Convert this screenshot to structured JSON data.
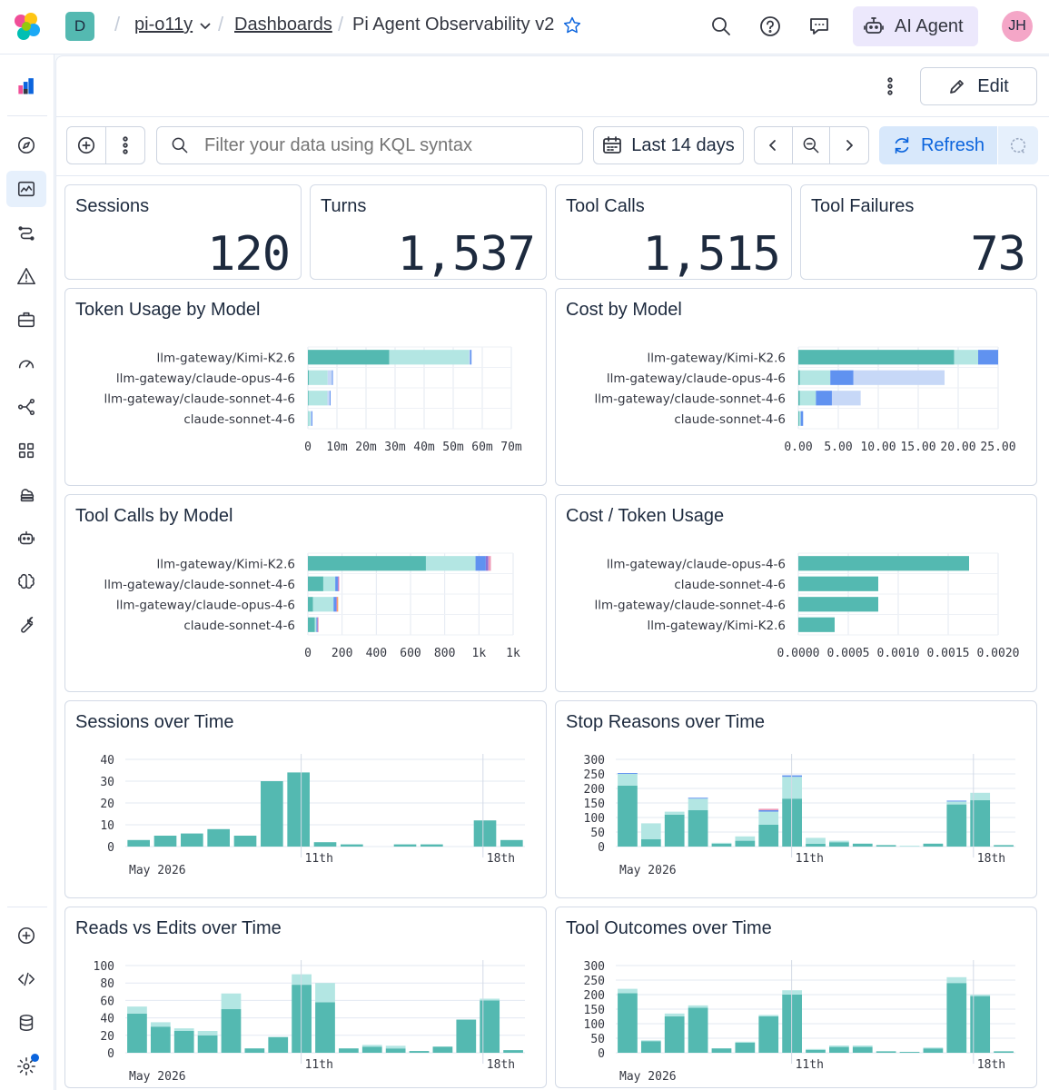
{
  "header": {
    "space_badge": "D",
    "workspace": "pi-o11y",
    "breadcrumb_dashboards": "Dashboards",
    "dashboard_title": "Pi Agent Observability v2",
    "ai_agent_label": "AI Agent",
    "user_initials": "JH"
  },
  "toolbar": {
    "edit_label": "Edit",
    "filter_placeholder": "Filter your data using KQL syntax",
    "time_range": "Last 14 days",
    "refresh_label": "Refresh"
  },
  "metrics": [
    {
      "title": "Sessions",
      "value": "120"
    },
    {
      "title": "Turns",
      "value": "1,537"
    },
    {
      "title": "Tool Calls",
      "value": "1,515"
    },
    {
      "title": "Tool Failures",
      "value": "73"
    }
  ],
  "colors": {
    "primary": "#54b9b1",
    "light": "#b3e6e3",
    "blue": "#6092f0",
    "paleblue": "#c7d8f7",
    "pink": "#ee9bb8",
    "orange": "#f5a35c",
    "purple": "#8a72d6",
    "accent": "#0b64dd"
  },
  "chart_data": [
    {
      "id": "token_usage",
      "title": "Token Usage by Model",
      "type": "bar",
      "orientation": "horizontal",
      "stacked": true,
      "categories": [
        "llm-gateway/Kimi-K2.6",
        "llm-gateway/claude-opus-4-6",
        "llm-gateway/claude-sonnet-4-6",
        "claude-sonnet-4-6"
      ],
      "series": [
        {
          "color": "primary",
          "values": [
            28000000,
            300000,
            200000,
            50000
          ]
        },
        {
          "color": "light",
          "values": [
            27500000,
            6500000,
            6500000,
            900000
          ]
        },
        {
          "color": "paleblue",
          "values": [
            300000,
            1500000,
            800000,
            300000
          ]
        },
        {
          "color": "blue",
          "values": [
            500000,
            200000,
            200000,
            100000
          ]
        }
      ],
      "xticks": [
        "0",
        "10m",
        "20m",
        "30m",
        "40m",
        "50m",
        "60m",
        "70m"
      ],
      "xmax": 70000000
    },
    {
      "id": "cost_by_model",
      "title": "Cost by Model",
      "type": "bar",
      "orientation": "horizontal",
      "stacked": true,
      "categories": [
        "llm-gateway/Kimi-K2.6",
        "llm-gateway/claude-opus-4-6",
        "llm-gateway/claude-sonnet-4-6",
        "claude-sonnet-4-6"
      ],
      "series": [
        {
          "color": "primary",
          "values": [
            19.5,
            0.2,
            0.2,
            0.1
          ]
        },
        {
          "color": "light",
          "values": [
            3.0,
            3.8,
            2.0,
            0.2
          ]
        },
        {
          "color": "blue",
          "values": [
            2.5,
            2.9,
            2.0,
            0.3
          ]
        },
        {
          "color": "paleblue",
          "values": [
            0,
            11.4,
            3.6,
            0
          ]
        }
      ],
      "xticks": [
        "0.00",
        "5.00",
        "10.00",
        "15.00",
        "20.00",
        "25.00"
      ],
      "xmax": 25
    },
    {
      "id": "tool_calls_by_model",
      "title": "Tool Calls by Model",
      "type": "bar",
      "orientation": "horizontal",
      "stacked": true,
      "categories": [
        "llm-gateway/Kimi-K2.6",
        "llm-gateway/claude-sonnet-4-6",
        "llm-gateway/claude-opus-4-6",
        "claude-sonnet-4-6"
      ],
      "series": [
        {
          "color": "primary",
          "values": [
            690,
            90,
            30,
            40
          ]
        },
        {
          "color": "light",
          "values": [
            290,
            70,
            120,
            10
          ]
        },
        {
          "color": "blue",
          "values": [
            60,
            15,
            15,
            5
          ]
        },
        {
          "color": "purple",
          "values": [
            15,
            3,
            3,
            2
          ]
        },
        {
          "color": "pink",
          "values": [
            15,
            3,
            3,
            2
          ]
        },
        {
          "color": "orange",
          "values": [
            0,
            0,
            6,
            0
          ]
        }
      ],
      "xticks": [
        "0",
        "200",
        "400",
        "600",
        "800",
        "1k",
        "1k"
      ],
      "xmax": 1200
    },
    {
      "id": "cost_per_token",
      "title": "Cost / Token Usage",
      "type": "bar",
      "orientation": "horizontal",
      "categories": [
        "llm-gateway/claude-opus-4-6",
        "claude-sonnet-4-6",
        "llm-gateway/claude-sonnet-4-6",
        "llm-gateway/Kimi-K2.6"
      ],
      "values": [
        0.00188,
        0.00088,
        0.00088,
        0.0004
      ],
      "xticks": [
        "0.0000",
        "0.0005",
        "0.0010",
        "0.0015",
        "0.0020"
      ],
      "xmax": 0.0022
    },
    {
      "id": "sessions_over_time",
      "title": "Sessions over Time",
      "type": "bar",
      "x": [
        "2026-05-05",
        "2026-05-06",
        "2026-05-07",
        "2026-05-08",
        "2026-05-09",
        "2026-05-10",
        "2026-05-11",
        "2026-05-12",
        "2026-05-13",
        "2026-05-14",
        "2026-05-15",
        "2026-05-16",
        "2026-05-17",
        "2026-05-18",
        "2026-05-19"
      ],
      "yticks": [
        "0",
        "10",
        "20",
        "30",
        "40"
      ],
      "ymax": 45,
      "series": [
        {
          "color": "primary",
          "values": [
            3,
            5,
            6,
            8,
            5,
            30,
            34,
            2,
            1,
            0,
            1,
            1,
            0,
            12,
            3
          ]
        }
      ],
      "xlabel_month": "May 2026",
      "xtick_labels": [
        "11th",
        "18th"
      ]
    },
    {
      "id": "stop_reasons_over_time",
      "title": "Stop Reasons over Time",
      "type": "bar",
      "stacked": true,
      "yticks": [
        "0",
        "50",
        "100",
        "150",
        "200",
        "250",
        "300"
      ],
      "ymax": 320,
      "series": [
        {
          "color": "primary",
          "values": [
            210,
            25,
            110,
            125,
            10,
            20,
            75,
            165,
            10,
            15,
            10,
            5,
            0,
            10,
            145,
            160,
            5
          ]
        },
        {
          "color": "light",
          "values": [
            40,
            55,
            10,
            40,
            3,
            15,
            45,
            75,
            20,
            5,
            0,
            0,
            3,
            0,
            10,
            25,
            0
          ]
        },
        {
          "color": "blue",
          "values": [
            3,
            0,
            0,
            3,
            0,
            0,
            5,
            5,
            0,
            0,
            0,
            0,
            0,
            0,
            3,
            0,
            0
          ]
        },
        {
          "color": "pink",
          "values": [
            0,
            0,
            0,
            0,
            0,
            0,
            5,
            0,
            0,
            0,
            0,
            0,
            0,
            0,
            0,
            0,
            0
          ]
        }
      ],
      "xlabel_month": "May 2026",
      "xtick_labels": [
        "11th",
        "18th"
      ]
    },
    {
      "id": "reads_vs_edits",
      "title": "Reads vs Edits over Time",
      "type": "bar",
      "stacked": true,
      "yticks": [
        "0",
        "20",
        "40",
        "60",
        "80",
        "100"
      ],
      "ymax": 105,
      "series": [
        {
          "color": "primary",
          "values": [
            45,
            30,
            25,
            20,
            50,
            5,
            18,
            78,
            58,
            5,
            7,
            5,
            2,
            7,
            38,
            60,
            3
          ]
        },
        {
          "color": "light",
          "values": [
            8,
            5,
            3,
            5,
            18,
            0,
            0,
            12,
            22,
            0,
            2,
            3,
            0,
            0,
            0,
            2,
            0
          ]
        }
      ],
      "xlabel_month": "May 2026",
      "xtick_labels": [
        "11th",
        "18th"
      ]
    },
    {
      "id": "tool_outcomes",
      "title": "Tool Outcomes over Time",
      "type": "bar",
      "stacked": true,
      "yticks": [
        "0",
        "50",
        "100",
        "150",
        "200",
        "250",
        "300"
      ],
      "ymax": 320,
      "series": [
        {
          "color": "primary",
          "values": [
            205,
            40,
            125,
            155,
            15,
            35,
            125,
            200,
            10,
            20,
            20,
            5,
            3,
            15,
            240,
            195,
            5
          ]
        },
        {
          "color": "light",
          "values": [
            15,
            3,
            10,
            8,
            0,
            3,
            5,
            15,
            3,
            5,
            5,
            0,
            0,
            3,
            20,
            5,
            0
          ]
        }
      ],
      "xlabel_month": "May 2026",
      "xtick_labels": [
        "11th",
        "18th"
      ]
    }
  ]
}
